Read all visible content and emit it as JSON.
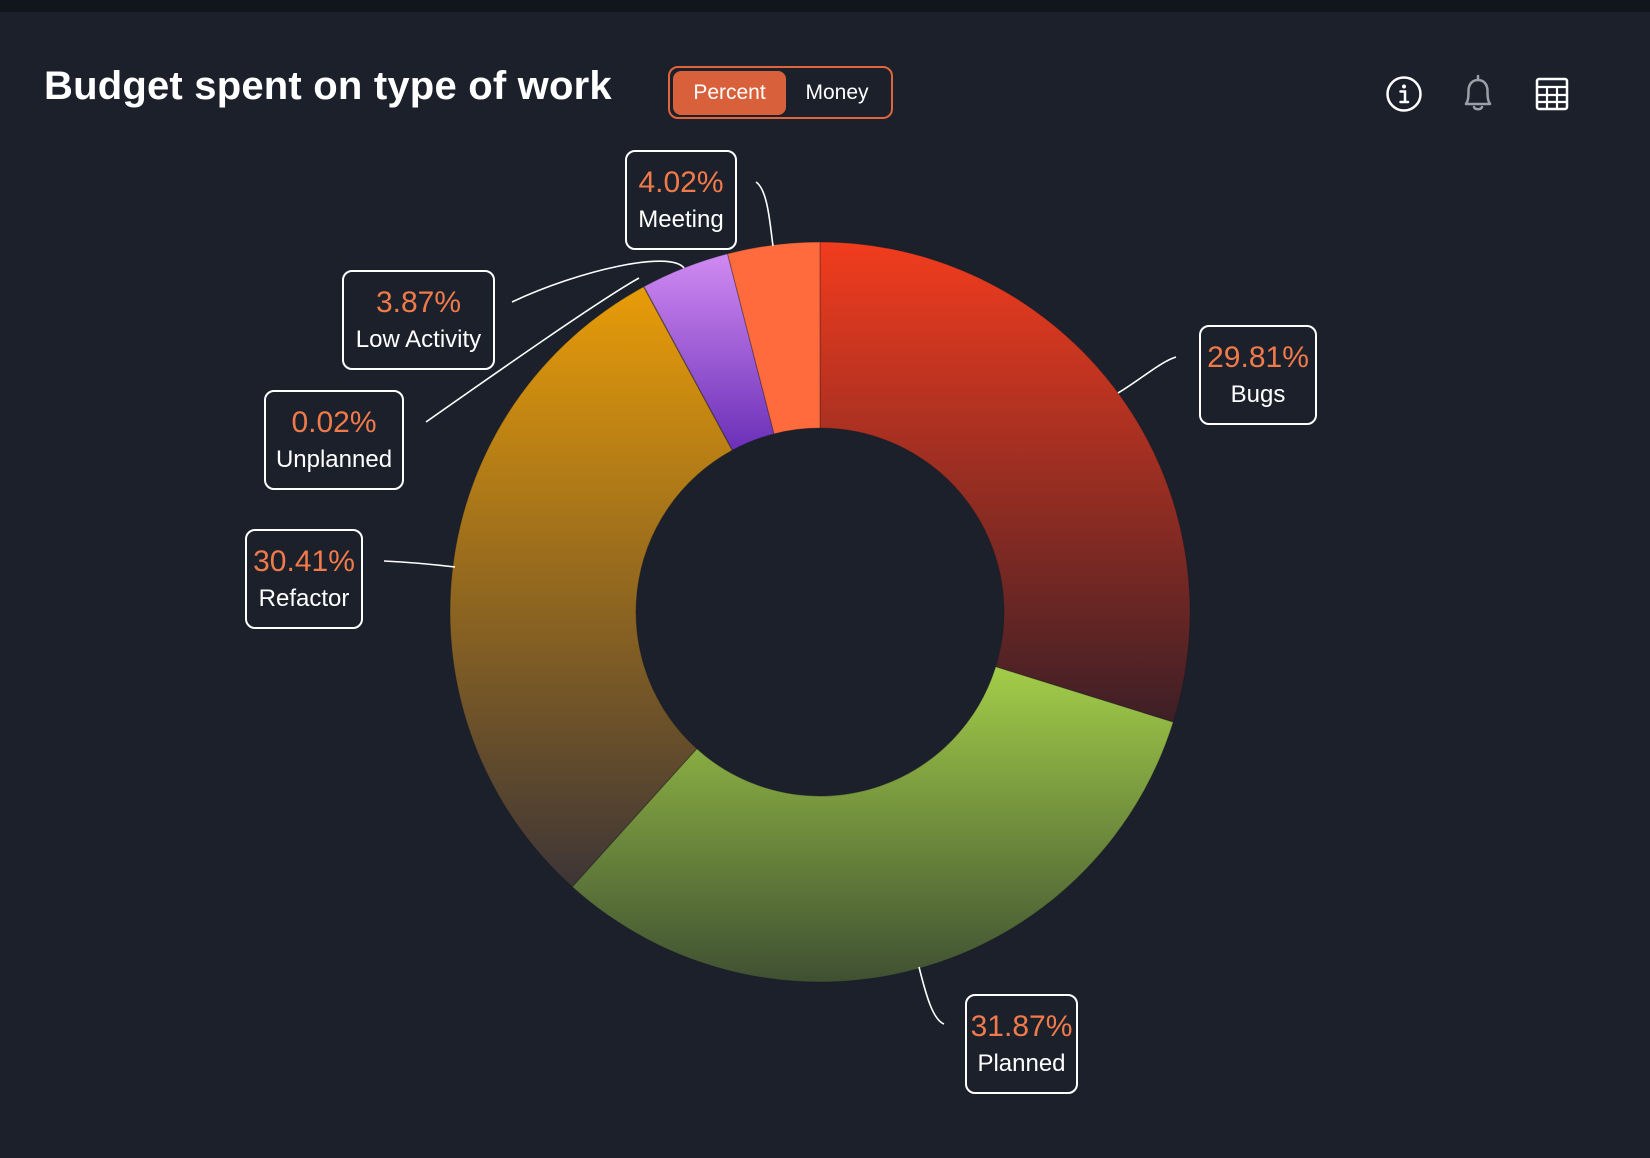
{
  "header": {
    "title": "Budget spent on type of work",
    "toggle": {
      "options": [
        "Percent",
        "Money"
      ],
      "selected": "Percent"
    },
    "actions": [
      {
        "icon": "info-icon"
      },
      {
        "icon": "bell-icon"
      },
      {
        "icon": "table-icon"
      }
    ]
  },
  "colors": {
    "background": "#1b202a",
    "accent": "#e0643c",
    "label_value": "#f07a4a"
  },
  "chart_data": {
    "type": "pie",
    "donut": true,
    "title": "Budget spent on type of work",
    "unit": "%",
    "slices": [
      {
        "name": "Bugs",
        "value": 29.81,
        "label": "29.81%",
        "color_top": "#f23c1e",
        "color_bottom": "#3d1f26"
      },
      {
        "name": "Planned",
        "value": 31.87,
        "label": "31.87%",
        "color_top": "#a3cd48",
        "color_bottom": "#3f5032"
      },
      {
        "name": "Refactor",
        "value": 30.41,
        "label": "30.41%",
        "color_top": "#e89c08",
        "color_bottom": "#3d3536"
      },
      {
        "name": "Unplanned",
        "value": 0.02,
        "label": "0.02%",
        "color_top": "#e8b060",
        "color_bottom": "#e8b060"
      },
      {
        "name": "Low Activity",
        "value": 3.87,
        "label": "3.87%",
        "color_top": "#d08af2",
        "color_bottom": "#6b30b8"
      },
      {
        "name": "Meeting",
        "value": 4.02,
        "label": "4.02%",
        "color_top": "#ff6b3c",
        "color_bottom": "#ff6b3c"
      }
    ]
  }
}
